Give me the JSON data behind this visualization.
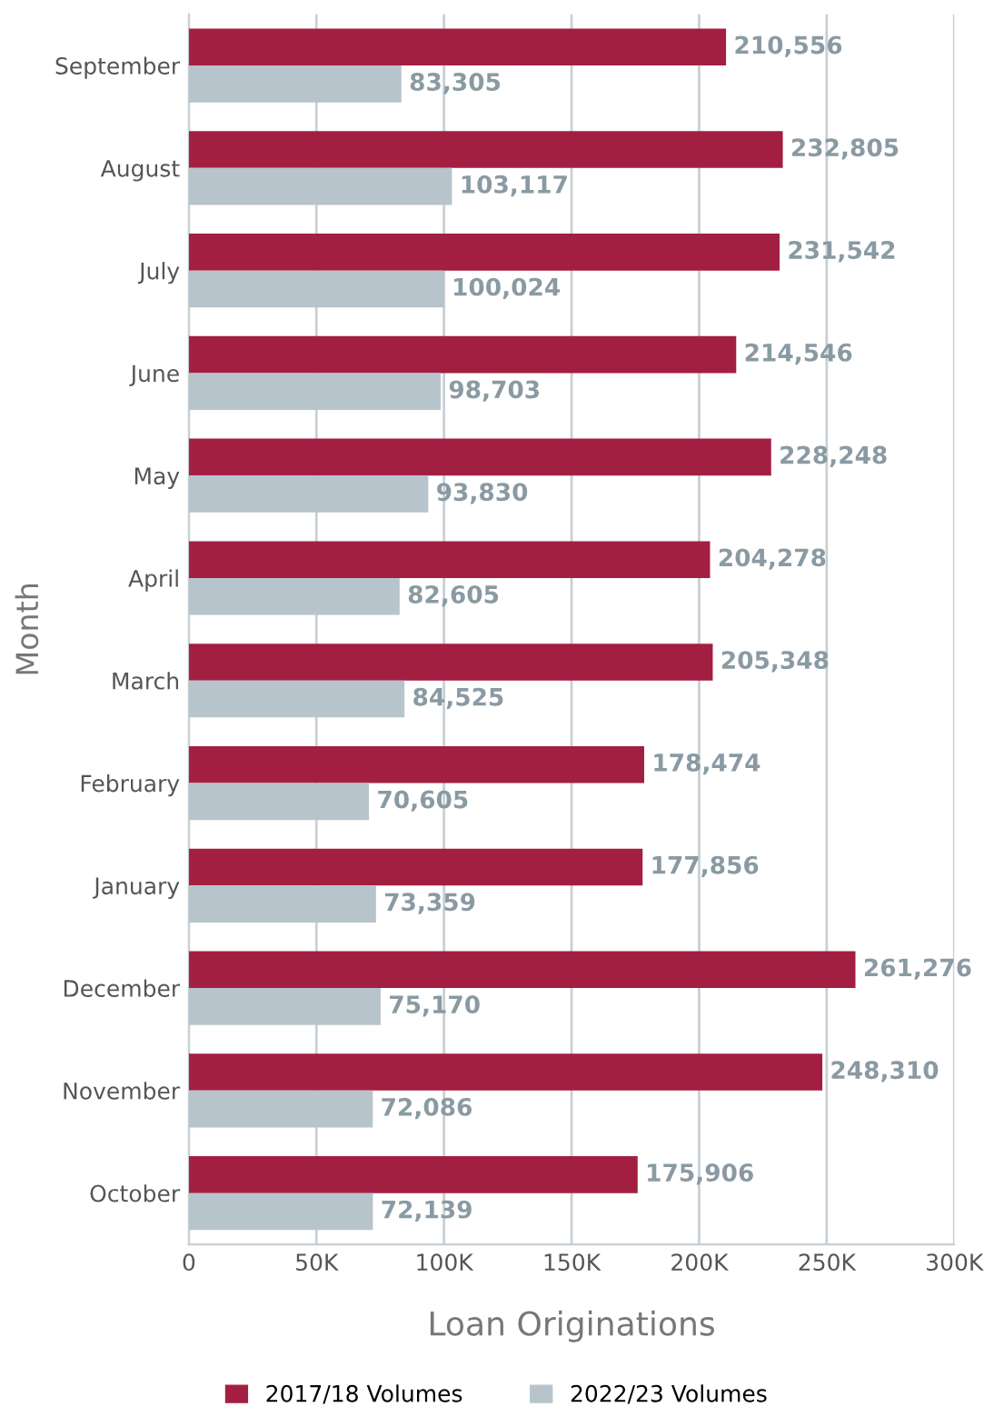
{
  "chart_data": {
    "type": "bar",
    "orientation": "horizontal",
    "xlabel": "Loan Originations",
    "ylabel": "Month",
    "categories": [
      "September",
      "August",
      "July",
      "June",
      "May",
      "April",
      "March",
      "February",
      "January",
      "December",
      "November",
      "October"
    ],
    "series": [
      {
        "name": "2017/18 Volumes",
        "color": "#a31f42",
        "values": [
          210556,
          232805,
          231542,
          214546,
          228248,
          204278,
          205348,
          178474,
          177856,
          261276,
          248310,
          175906
        ],
        "value_labels": [
          "210,556",
          "232,805",
          "231,542",
          "214,546",
          "228,248",
          "204,278",
          "205,348",
          "178,474",
          "177,856",
          "261,276",
          "248,310",
          "175,906"
        ]
      },
      {
        "name": "2022/23 Volumes",
        "color": "#b8c4cc",
        "values": [
          83305,
          103117,
          100024,
          98703,
          93830,
          82605,
          84525,
          70605,
          73359,
          75170,
          72086,
          72139
        ],
        "value_labels": [
          "83,305",
          "103,117",
          "100,024",
          "98,703",
          "93,830",
          "82,605",
          "84,525",
          "70,605",
          "73,359",
          "75,170",
          "72,086",
          "72,139"
        ]
      }
    ],
    "xlim": [
      0,
      300000
    ],
    "xticks": [
      {
        "value": 0,
        "label": "0"
      },
      {
        "value": 50000,
        "label": "50K"
      },
      {
        "value": 100000,
        "label": "100K"
      },
      {
        "value": 150000,
        "label": "150K"
      },
      {
        "value": 200000,
        "label": "200K"
      },
      {
        "value": 250000,
        "label": "250K"
      },
      {
        "value": 300000,
        "label": "300K"
      }
    ],
    "grid": "x",
    "legend": "bottom"
  }
}
